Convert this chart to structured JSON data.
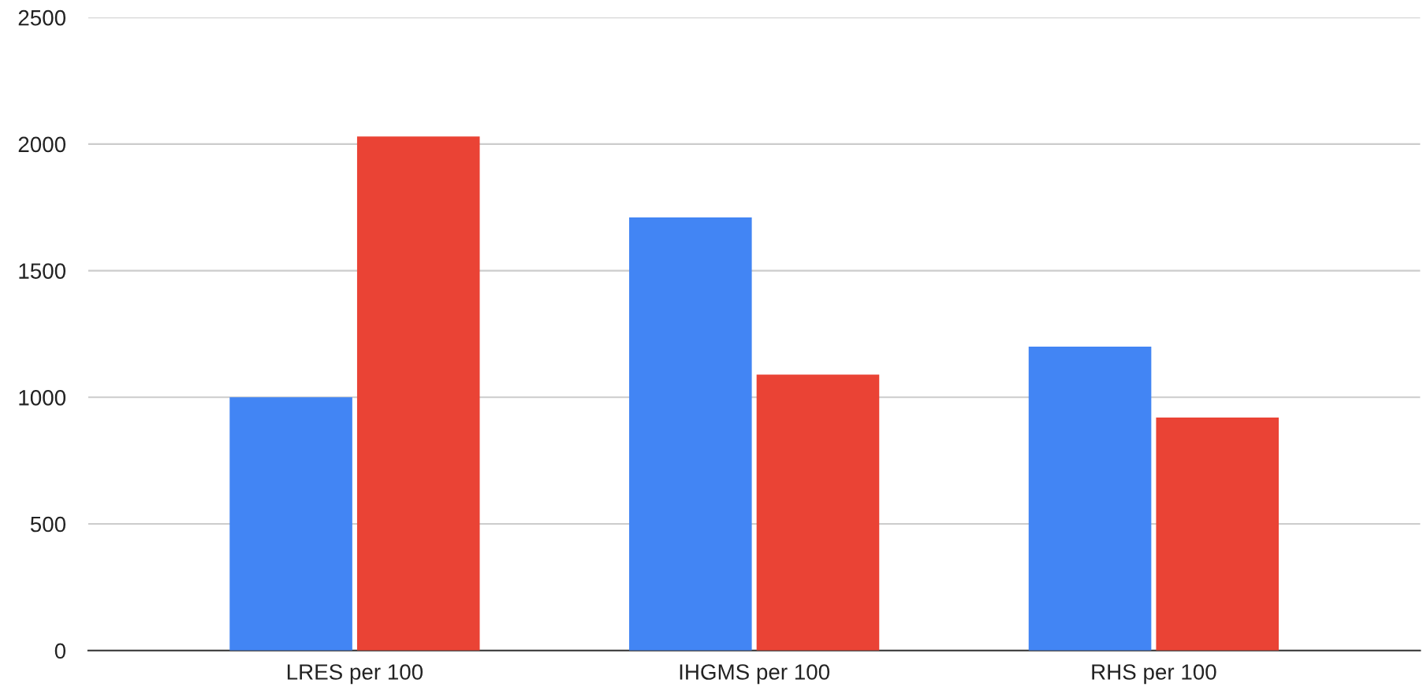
{
  "chart_data": {
    "type": "bar",
    "categories": [
      "LRES per 100",
      "IHGMS per 100",
      "RHS per 100"
    ],
    "series": [
      {
        "color": "#4285f4",
        "values": [
          1000,
          1710,
          1200
        ]
      },
      {
        "color": "#ea4335",
        "values": [
          2030,
          1090,
          920
        ]
      }
    ],
    "ylim": [
      0,
      2500
    ],
    "yticks": [
      0,
      500,
      1000,
      1500,
      2000,
      2500
    ],
    "grid": "y",
    "legend": false
  }
}
